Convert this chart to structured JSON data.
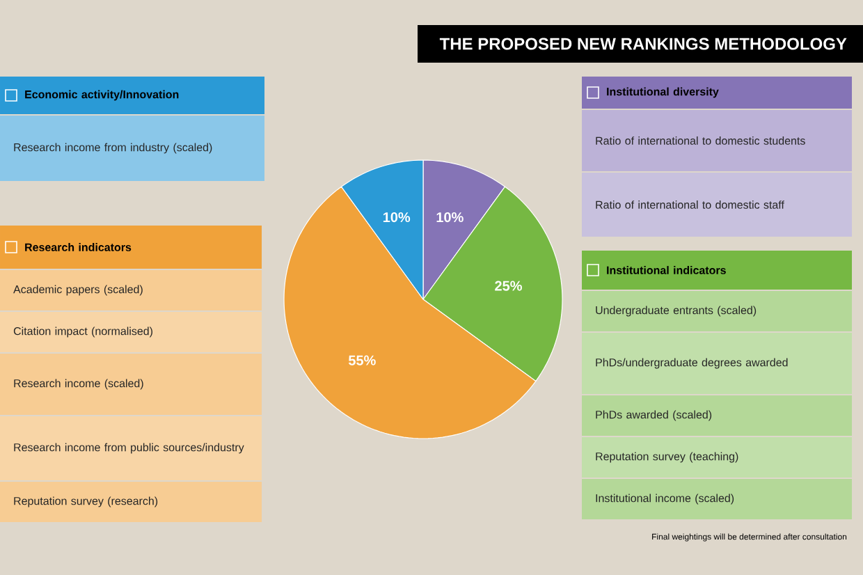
{
  "chart_data": {
    "type": "pie",
    "title": "THE PROPOSED NEW RANKINGS METHODOLOGY",
    "categories": [
      "Institutional diversity",
      "Institutional indicators",
      "Research indicators",
      "Economic activity/Innovation"
    ],
    "values": [
      10,
      25,
      55,
      10
    ],
    "value_labels": [
      "10%",
      "25%",
      "55%",
      "10%"
    ],
    "colors": [
      "#8574b6",
      "#76b843",
      "#f0a23a",
      "#2a9ad6"
    ],
    "legend": "top",
    "annotations": [
      "Ratio of international to domestic students",
      "Ratio of international to domestic staff",
      "Undergraduate entrants (scaled)",
      "PhDs/undergraduate degrees awarded",
      "PhDs awarded (scaled)",
      "Reputation survey (teaching)",
      "Institutional income (scaled)",
      "Academic papers (scaled)",
      "Citation impact (normalised)",
      "Research income (scaled)",
      "Research income from public sources/industry",
      "Reputation survey (research)",
      "Research income from industry (scaled)",
      "Final weightings will be determined after consultation"
    ]
  }
}
